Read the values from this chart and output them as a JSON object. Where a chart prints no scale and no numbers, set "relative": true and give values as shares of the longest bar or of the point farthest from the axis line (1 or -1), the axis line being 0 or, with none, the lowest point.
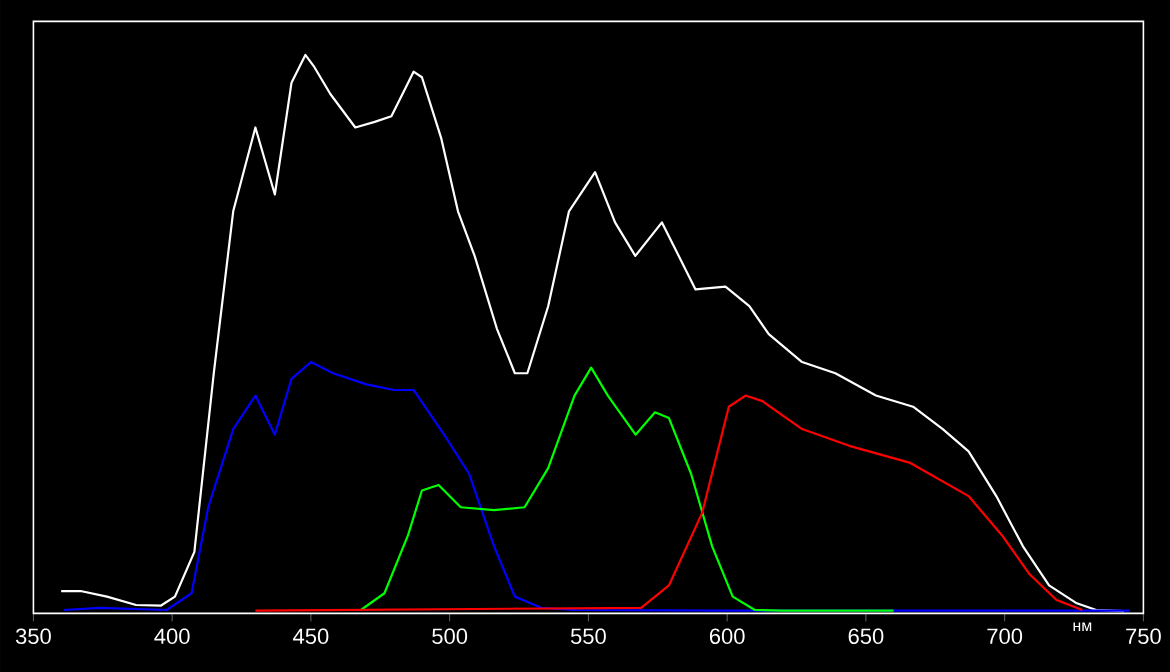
{
  "chart_data": {
    "type": "line",
    "relative": true,
    "xlabel": "нм",
    "xlim": [
      350,
      750
    ],
    "xticks": [
      350,
      400,
      450,
      500,
      550,
      600,
      650,
      700,
      750
    ],
    "legend": false,
    "grid": false,
    "marker": "none",
    "line_style": "solid",
    "tick_labels": "x",
    "series": [
      {
        "color": "#ffffff",
        "x": [
          360,
          367,
          376.5,
          387,
          396,
          401,
          408,
          415,
          422,
          430,
          437,
          443,
          448,
          451,
          457,
          466,
          473,
          479,
          484,
          487,
          490,
          497,
          503,
          509,
          517,
          523.5,
          528,
          535.5,
          543,
          552.4,
          559.6,
          566.9,
          576.5,
          588.6,
          599.4,
          608,
          615,
          627,
          639,
          653.6,
          667,
          677.7,
          687,
          697,
          706.6,
          716,
          726,
          733,
          743
        ],
        "values": [
          0.04,
          0.04,
          0.03,
          0.015,
          0.014,
          0.03,
          0.11,
          0.43,
          0.72,
          0.87,
          0.75,
          0.95,
          1.0,
          0.98,
          0.93,
          0.87,
          0.88,
          0.89,
          0.94,
          0.97,
          0.96,
          0.85,
          0.72,
          0.64,
          0.51,
          0.43,
          0.43,
          0.55,
          0.72,
          0.79,
          0.7,
          0.64,
          0.7,
          0.58,
          0.585,
          0.55,
          0.5,
          0.45,
          0.43,
          0.39,
          0.37,
          0.33,
          0.29,
          0.21,
          0.12,
          0.05,
          0.018,
          0.006,
          0.004
        ]
      },
      {
        "color": "#0000ff",
        "x": [
          361,
          374,
          398,
          407,
          413,
          422,
          430,
          437,
          443,
          450,
          458,
          470,
          480,
          487,
          498,
          507,
          516,
          523.5,
          533,
          545,
          600,
          700,
          745
        ],
        "values": [
          0.006,
          0.01,
          0.006,
          0.036,
          0.19,
          0.33,
          0.39,
          0.32,
          0.42,
          0.45,
          0.43,
          0.41,
          0.4,
          0.4,
          0.32,
          0.25,
          0.12,
          0.03,
          0.01,
          0.006,
          0.005,
          0.005,
          0.005
        ]
      },
      {
        "color": "#00ff00",
        "x": [
          468,
          476.5,
          485,
          490,
          496,
          504,
          516,
          527,
          535.5,
          545,
          551,
          557,
          567,
          574,
          579,
          587,
          594.6,
          602,
          610,
          620,
          660
        ],
        "values": [
          0.006,
          0.036,
          0.14,
          0.22,
          0.23,
          0.19,
          0.185,
          0.19,
          0.26,
          0.39,
          0.44,
          0.39,
          0.32,
          0.36,
          0.35,
          0.25,
          0.12,
          0.03,
          0.006,
          0.005,
          0.005
        ]
      },
      {
        "color": "#ff0000",
        "x": [
          430,
          569,
          579,
          591,
          600.6,
          606.6,
          612.7,
          627,
          644,
          665.7,
          687,
          699,
          709,
          718.7,
          728
        ],
        "values": [
          0.005,
          0.01,
          0.05,
          0.18,
          0.37,
          0.39,
          0.38,
          0.33,
          0.3,
          0.27,
          0.21,
          0.14,
          0.07,
          0.024,
          0.006
        ]
      }
    ]
  }
}
